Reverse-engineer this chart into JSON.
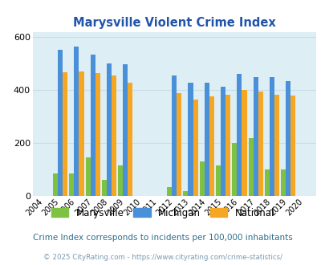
{
  "title": "Marysville Violent Crime Index",
  "years": [
    2004,
    2005,
    2006,
    2007,
    2008,
    2009,
    2010,
    2011,
    2012,
    2013,
    2014,
    2015,
    2016,
    2017,
    2018,
    2019,
    2020
  ],
  "marysville": [
    0,
    85,
    85,
    145,
    60,
    115,
    0,
    0,
    35,
    20,
    130,
    115,
    200,
    218,
    100,
    100,
    0
  ],
  "michigan": [
    0,
    553,
    565,
    535,
    500,
    498,
    0,
    0,
    455,
    428,
    428,
    413,
    460,
    450,
    448,
    435,
    0
  ],
  "national": [
    0,
    468,
    470,
    465,
    455,
    428,
    0,
    0,
    390,
    365,
    375,
    383,
    400,
    395,
    383,
    378,
    0
  ],
  "bar_width": 0.3,
  "ylim": [
    0,
    620
  ],
  "yticks": [
    0,
    200,
    400,
    600
  ],
  "color_marysville": "#7dc242",
  "color_michigan": "#4a90d9",
  "color_national": "#f5a623",
  "bg_color": "#deeef5",
  "grid_color": "#c8dde8",
  "subtitle": "Crime Index corresponds to incidents per 100,000 inhabitants",
  "footer": "© 2025 CityRating.com - https://www.cityrating.com/crime-statistics/",
  "title_color": "#2255aa",
  "subtitle_color": "#2c6e8a",
  "footer_color": "#7a9ab0"
}
